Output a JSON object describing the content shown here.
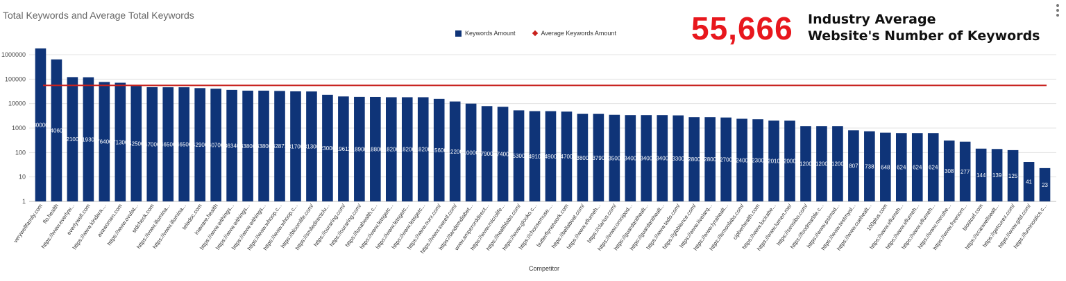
{
  "page": {
    "title": "Total Keywords and Average Total Keywords",
    "kpi_value": "55,666",
    "kpi_label_line1": "Industry Average",
    "kpi_label_line2": "Website's Number of Keywords",
    "menu_icon": "kebab-menu-icon"
  },
  "chart_data": {
    "type": "bar",
    "title": "Total Keywords and Average Total Keywords",
    "xlabel": "Competitor",
    "ylabel": "",
    "yscale": "log",
    "ylim": [
      1,
      1000000
    ],
    "yticks": [
      "1",
      "10",
      "100",
      "1000",
      "10000",
      "100000",
      "1000000"
    ],
    "grid": true,
    "legend_position": "top-center",
    "colors": {
      "bars": "#0f3478",
      "average_line": "#c8211d"
    },
    "series": [
      {
        "name": "Keywords Amount",
        "type": "bar"
      },
      {
        "name": "Average Keywords Amount",
        "type": "line",
        "value": 55666
      }
    ],
    "categories": [
      "verywellfamily.com",
      "flo.health",
      "https://www.everlyw...",
      "everlywell.com",
      "https://www.kindara....",
      "avawomen.com",
      "https://www.ovulat...",
      "stdcheck.com",
      "https://www.illumina...",
      "https://www.illumina...",
      "teladoc.com",
      "inaware.health",
      "https://www.withings...",
      "https://www.withings...",
      "https://www.withings...",
      "https://www.whoop.c...",
      "https://www.whoop.c...",
      "https://bloomlife.com/",
      "https://smiledirectclu...",
      "https://ouraring.com/",
      "https://ouraring.com/",
      "https://lunahealth.c...",
      "https://www.letsgetc...",
      "https://www.letsgetc...",
      "https://www.letsgetc...",
      "https://www.nurx.com/",
      "https://www.sweetl.com/",
      "https://tandemdiabet...",
      "www.amperorddirect...",
      "https://www.microlife...",
      "https://healthlabs.com/",
      "https://www.glooko.c...",
      "https://choosemuse....",
      "butterflynetwork.com",
      "https://bellabeat.com/",
      "https://www.ellumeh...",
      "https://clarius.com/",
      "https://www.omnipod...",
      "https://guardanthealt...",
      "https://guardanthealt...",
      "https://www.tado.com/",
      "https://globience.com/",
      "https://www.livelarq...",
      "https://www.lyrahealt...",
      "https://lemonlabs.com/",
      "cipherhealth.com",
      "https://www.lucirahe...",
      "https://www.lumen.me/",
      "https://sensibo.com/",
      "https://foodmarble.c...",
      "https://www.psimod...",
      "https://www.testmyal...",
      "https://www.cuehealt...",
      "100plus.com",
      "https://www.ellumeh...",
      "https://www.ellumeh...",
      "https://www.ellumeh...",
      "https://www.meruhe...",
      "https://www.freenom...",
      "biostcef.com",
      "https://scanwellsealt...",
      "https://getcurex.com/",
      "https://www.gitd.com/",
      "https://luminostics.c..."
    ],
    "values": [
      1800000,
      640600,
      121001,
      119300,
      76400,
      71300,
      52500,
      47000,
      46500,
      46500,
      42900,
      40700,
      36340,
      33800,
      33800,
      32871,
      31700,
      31300,
      23000,
      19612,
      18900,
      18800,
      18200,
      18200,
      18200,
      15600,
      12200,
      10000,
      7900,
      7400,
      5300,
      4910,
      4900,
      4700,
      3800,
      3790,
      3500,
      3400,
      3400,
      3400,
      3300,
      2800,
      2800,
      2700,
      2400,
      2300,
      2010,
      2000,
      1200,
      1200,
      1200,
      807,
      738,
      648,
      624,
      624,
      624,
      308,
      277,
      144,
      139,
      125,
      41,
      23
    ],
    "data_labels": [
      "1800000",
      "640600",
      "121001",
      "119300",
      "76400",
      "71300",
      "52500",
      "47000",
      "46500",
      "46500",
      "42900",
      "40700",
      "36340",
      "33800",
      "33800",
      "32871",
      "31700",
      "31300",
      "23000",
      "19612",
      "18900",
      "18800",
      "18200",
      "18200",
      "18200",
      "15600",
      "12200",
      "10000",
      "7900",
      "7400",
      "5300",
      "4910",
      "4900",
      "4700",
      "3800",
      "3790",
      "3500",
      "3400",
      "3400",
      "3400",
      "3300",
      "2800",
      "2800",
      "2700",
      "2400",
      "2300",
      "2010",
      "2000",
      "1200",
      "1200",
      "1200",
      "807",
      "738",
      "648",
      "624",
      "624",
      "624",
      "308",
      "277",
      "144",
      "139",
      "125",
      "41",
      "23"
    ]
  }
}
